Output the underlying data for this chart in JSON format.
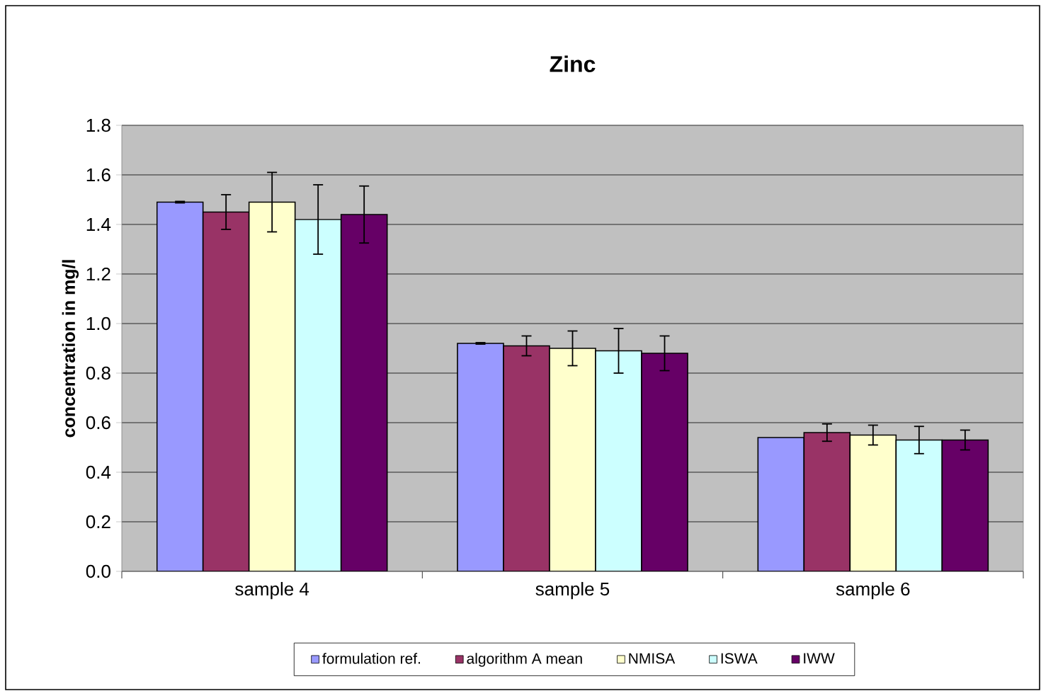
{
  "chart_data": {
    "type": "bar",
    "title": "Zinc",
    "ylabel": "concentration in mg/l",
    "categories": [
      "sample 4",
      "sample 5",
      "sample 6"
    ],
    "series": [
      {
        "name": "formulation ref.",
        "color": "#9999ff",
        "values": [
          1.49,
          0.92,
          0.54
        ],
        "errors": [
          0.003,
          0.003,
          null
        ]
      },
      {
        "name": "algorithm A mean",
        "color": "#993366",
        "values": [
          1.45,
          0.91,
          0.56
        ],
        "errors": [
          0.07,
          0.04,
          0.035
        ]
      },
      {
        "name": "NMISA",
        "color": "#ffffcc",
        "values": [
          1.49,
          0.9,
          0.55
        ],
        "errors": [
          0.12,
          0.07,
          0.04
        ]
      },
      {
        "name": "ISWA",
        "color": "#ccffff",
        "values": [
          1.42,
          0.89,
          0.53
        ],
        "errors": [
          0.14,
          0.09,
          0.055
        ]
      },
      {
        "name": "IWW",
        "color": "#660066",
        "values": [
          1.44,
          0.88,
          0.53
        ],
        "errors": [
          0.115,
          0.07,
          0.04
        ]
      }
    ],
    "ylim": [
      0,
      1.8
    ],
    "yticks": [
      {
        "value": 0,
        "label": "0.0"
      },
      {
        "value": 0.2,
        "label": "0.2"
      },
      {
        "value": 0.4,
        "label": "0.4"
      },
      {
        "value": 0.6,
        "label": "0.6"
      },
      {
        "value": 0.8,
        "label": "0.8"
      },
      {
        "value": 1.0,
        "label": "1.0"
      },
      {
        "value": 1.2,
        "label": "1.2"
      },
      {
        "value": 1.4,
        "label": "1.4"
      },
      {
        "value": 1.6,
        "label": "1.6"
      },
      {
        "value": 1.8,
        "label": "1.8"
      }
    ],
    "grid": "y",
    "legend": "bottom"
  }
}
